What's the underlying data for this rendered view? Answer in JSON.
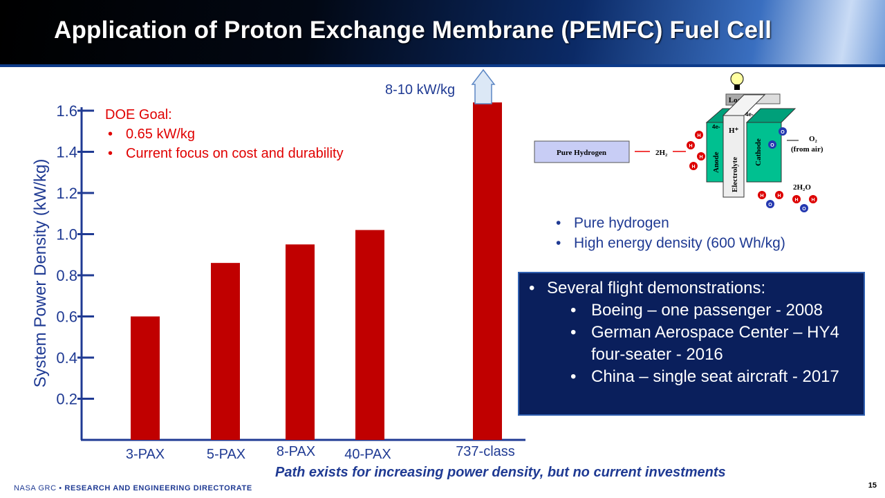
{
  "title": "Application of Proton Exchange Membrane (PEMFC) Fuel Cell",
  "chart_data": {
    "type": "bar",
    "title": "",
    "xlabel": "",
    "ylabel": "System Power Density (kW/kg)",
    "categories": [
      "3-PAX",
      "5-PAX",
      "8-PAX",
      "40-PAX",
      "737-class"
    ],
    "values": [
      0.6,
      0.86,
      0.95,
      1.02,
      1.64
    ],
    "ylim": [
      0,
      1.6
    ],
    "yticks": [
      "0.2",
      "0.4",
      "0.6",
      "0.8",
      "1.0",
      "1.2",
      "1.4",
      "1.6"
    ],
    "bar_color": "#c00000",
    "annotation": "8-10 kW/kg",
    "grid": false
  },
  "doe": {
    "heading": "DOE Goal:",
    "items": [
      "0.65 kW/kg",
      "Current focus on cost and durability"
    ]
  },
  "diagram": {
    "source": "Pure Hydrogen",
    "h2": "2H₂",
    "load": "Load",
    "anode": "Anode",
    "cathode": "Cathode",
    "electrolyte": "Electrolyte",
    "hplus": "H⁺",
    "electrons": "4e-",
    "o2": "O₂",
    "from_air": "(from air)",
    "water": "2H₂O",
    "h": "H",
    "o": "O"
  },
  "hydrogen_points": [
    "Pure hydrogen",
    "High energy density (600 Wh/kg)"
  ],
  "demos": {
    "heading": "Several flight demonstrations:",
    "items": [
      "Boeing – one passenger - 2008",
      "German Aerospace Center – HY4 four-seater - 2016",
      "China – single seat aircraft - 2017"
    ]
  },
  "path_note": "Path exists for increasing power density, but no current investments",
  "footer": {
    "org": "NASA GRC",
    "dir": "RESEARCH AND ENGINEERING DIRECTORATE",
    "page": "15"
  }
}
